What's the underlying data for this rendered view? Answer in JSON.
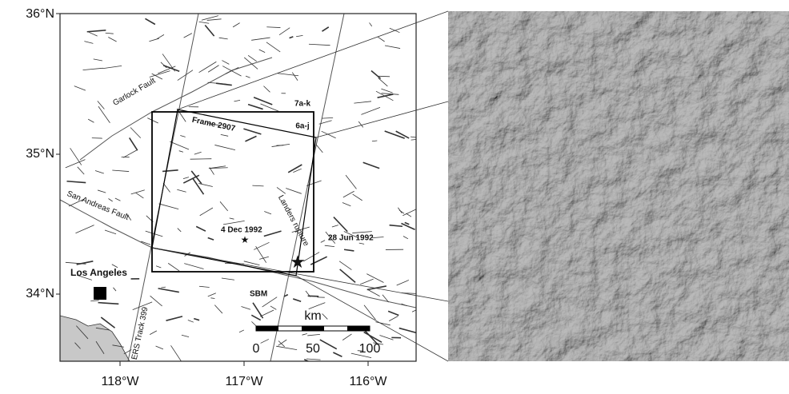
{
  "map": {
    "lat_labels": [
      "36°N",
      "35°N",
      "34°N"
    ],
    "lon_labels": [
      "118°W",
      "117°W",
      "116°W"
    ],
    "features": {
      "garlock": "Garlock Fault",
      "san_andreas": "San Andreas Fault",
      "frame": "Frame 2907",
      "fig7": "7a-k",
      "fig6": "6a-j",
      "landers": "Landers rupture",
      "dec": "4 Dec 1992",
      "jun": "28 Jun 1992",
      "la": "Los Angeles",
      "sbm": "SBM",
      "track": "ERS Track 399"
    },
    "scale": {
      "unit": "km",
      "labels": [
        "0",
        "50",
        "100"
      ]
    }
  }
}
